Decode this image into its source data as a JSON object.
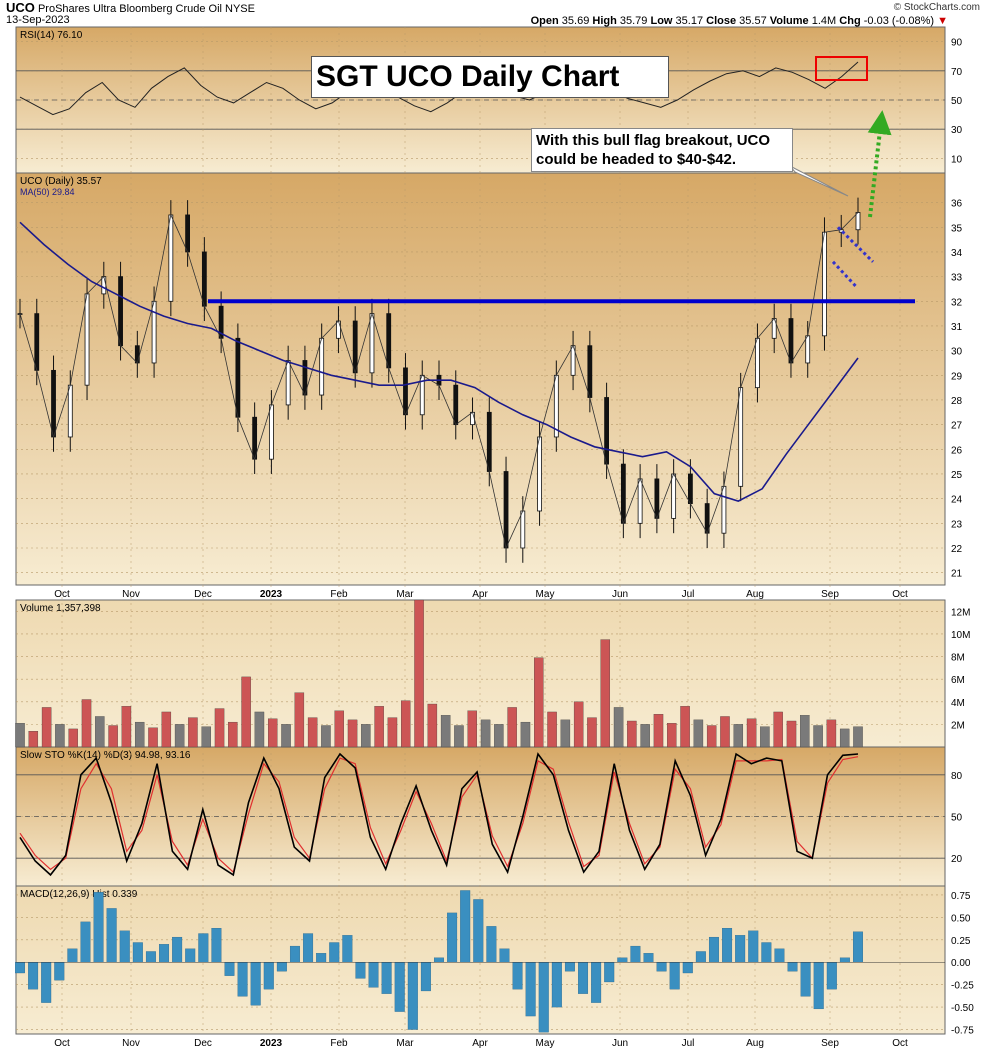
{
  "header": {
    "symbol": "UCO",
    "name": "ProShares Ultra Bloomberg Crude Oil NYSE",
    "date": "13-Sep-2023",
    "brand": "© StockCharts.com",
    "open_label": "Open",
    "open": "35.69",
    "high_label": "High",
    "high": "35.79",
    "low_label": "Low",
    "low": "35.17",
    "close_label": "Close",
    "close": "35.57",
    "volume_label": "Volume",
    "volume": "1.4M",
    "chg_label": "Chg",
    "chg": "-0.03 (-0.08%)"
  },
  "annotations": {
    "title": "SGT UCO Daily Chart",
    "note_line1": "With this bull flag breakout, UCO",
    "note_line2": "could be headed to $40-$42."
  },
  "colors": {
    "panel_bg_top": "#d9ae6a",
    "panel_bg_bottom": "#f6ead0",
    "price_line": "#0000cc",
    "ma_line": "#1a1a8c",
    "up_volume": "#7a7a7a",
    "down_volume": "#cc5555",
    "stoch_k": "#000000",
    "stoch_d": "#e03030",
    "macd_hist": "#3a8fc0",
    "arrow": "#33aa22",
    "highlight": "#ee0000"
  },
  "x_labels": [
    "Oct",
    "Nov",
    "Dec",
    "2023",
    "Feb",
    "Mar",
    "Apr",
    "May",
    "Jun",
    "Jul",
    "Aug",
    "Sep",
    "Oct"
  ],
  "chart_data": [
    {
      "type": "line",
      "title": "RSI(14) 76.10",
      "ylim": [
        0,
        100
      ],
      "y_ticks": [
        10,
        30,
        50,
        70,
        90
      ],
      "reference_lines": [
        30,
        50,
        70
      ],
      "series": [
        {
          "name": "RSI(14)",
          "last": 76.1,
          "values": [
            52,
            46,
            40,
            44,
            55,
            62,
            50,
            45,
            58,
            66,
            72,
            60,
            52,
            48,
            55,
            62,
            58,
            50,
            44,
            48,
            56,
            63,
            59,
            52,
            46,
            42,
            48,
            56,
            60,
            57,
            53,
            50,
            55,
            61,
            66,
            62,
            56,
            51,
            48,
            45,
            50,
            57,
            63,
            68,
            70,
            66,
            72,
            69,
            64,
            58,
            66,
            76
          ]
        }
      ]
    },
    {
      "type": "line",
      "title": "UCO (Daily) 35.57",
      "ylim": [
        20.5,
        37.2
      ],
      "y_ticks": [
        21,
        22,
        23,
        24,
        25,
        26,
        27,
        28,
        29,
        30,
        31,
        32,
        33,
        34,
        35,
        36
      ],
      "resistance_level": 32,
      "series": [
        {
          "name": "UCO (Daily)",
          "last": 35.57,
          "values": [
            31.5,
            29.2,
            26.5,
            28.6,
            32.3,
            33.0,
            30.2,
            29.5,
            32.0,
            35.5,
            34.0,
            31.8,
            30.5,
            27.3,
            25.6,
            27.8,
            29.6,
            28.2,
            30.5,
            31.2,
            29.1,
            31.5,
            29.3,
            27.4,
            29.0,
            28.6,
            27.0,
            27.5,
            25.1,
            22.0,
            23.5,
            26.5,
            29.0,
            30.2,
            28.1,
            25.4,
            23.0,
            24.8,
            23.2,
            25.0,
            23.8,
            22.6,
            24.5,
            28.5,
            30.5,
            31.3,
            29.5,
            30.6,
            34.8,
            34.9,
            35.6
          ]
        },
        {
          "name": "MA(50)",
          "last": 29.84,
          "values": [
            35.2,
            34.3,
            33.5,
            32.8,
            32.3,
            31.8,
            31.4,
            31.1,
            30.9,
            30.4,
            30.0,
            29.6,
            29.3,
            29.0,
            28.8,
            28.6,
            28.6,
            28.8,
            28.8,
            28.5,
            27.9,
            27.4,
            27.0,
            26.5,
            26.1,
            25.9,
            25.7,
            25.9,
            25.3,
            24.2,
            23.9,
            24.4,
            25.8,
            27.1,
            28.4,
            29.7
          ]
        }
      ]
    },
    {
      "type": "bar",
      "title": "Volume 1,357,398",
      "ylim": [
        0,
        13
      ],
      "y_ticks": [
        "2M",
        "4M",
        "6M",
        "8M",
        "10M",
        "12M"
      ],
      "series": [
        {
          "name": "Volume",
          "unit": "M",
          "values": [
            2.1,
            1.4,
            3.5,
            2.0,
            1.6,
            4.2,
            2.7,
            1.9,
            3.6,
            2.2,
            1.7,
            3.1,
            2.0,
            2.6,
            1.8,
            3.4,
            2.2,
            6.2,
            3.1,
            2.5,
            2.0,
            4.8,
            2.6,
            1.9,
            3.2,
            2.4,
            2.0,
            3.6,
            2.6,
            4.1,
            13.0,
            3.8,
            2.8,
            1.9,
            3.2,
            2.4,
            2.0,
            3.5,
            2.2,
            7.9,
            3.1,
            2.4,
            4.0,
            2.6,
            9.5,
            3.5,
            2.3,
            2.0,
            2.9,
            2.1,
            3.6,
            2.4,
            1.9,
            2.7,
            2.0,
            2.5,
            1.8,
            3.1,
            2.3,
            2.8,
            1.9,
            2.4,
            1.6,
            1.8
          ]
        }
      ]
    },
    {
      "type": "line",
      "title": "Slow STO %K(14) %D(3) 94.98, 93.16",
      "ylim": [
        0,
        100
      ],
      "y_ticks": [
        20,
        50,
        80
      ],
      "reference_lines": [
        20,
        50,
        80
      ],
      "series": [
        {
          "name": "%K(14)",
          "last": 94.98,
          "values": [
            35,
            18,
            8,
            22,
            80,
            92,
            60,
            18,
            45,
            88,
            25,
            12,
            55,
            15,
            8,
            60,
            92,
            70,
            28,
            18,
            78,
            95,
            85,
            35,
            12,
            45,
            72,
            40,
            15,
            70,
            82,
            30,
            10,
            50,
            95,
            80,
            40,
            10,
            25,
            88,
            40,
            12,
            30,
            90,
            65,
            22,
            48,
            95,
            88,
            92,
            90,
            25,
            20,
            80,
            94,
            95
          ]
        },
        {
          "name": "%D(3)",
          "last": 93.16,
          "values": [
            38,
            22,
            12,
            20,
            70,
            88,
            70,
            25,
            40,
            80,
            32,
            15,
            48,
            20,
            10,
            52,
            88,
            75,
            35,
            20,
            70,
            92,
            88,
            42,
            16,
            40,
            68,
            45,
            18,
            64,
            80,
            36,
            14,
            45,
            90,
            84,
            46,
            14,
            22,
            82,
            45,
            16,
            28,
            84,
            70,
            28,
            44,
            90,
            90,
            90,
            91,
            32,
            20,
            74,
            91,
            93
          ]
        }
      ]
    },
    {
      "type": "bar",
      "title": "MACD(12,26,9) Hist 0.339",
      "ylim": [
        -0.8,
        0.85
      ],
      "y_ticks": [
        -0.75,
        -0.5,
        -0.25,
        0.0,
        0.25,
        0.5,
        0.75
      ],
      "series": [
        {
          "name": "Hist",
          "last": 0.339,
          "values": [
            -0.12,
            -0.3,
            -0.45,
            -0.2,
            0.15,
            0.45,
            0.78,
            0.6,
            0.35,
            0.22,
            0.12,
            0.2,
            0.28,
            0.15,
            0.32,
            0.38,
            -0.15,
            -0.38,
            -0.48,
            -0.3,
            -0.1,
            0.18,
            0.32,
            0.1,
            0.22,
            0.3,
            -0.18,
            -0.28,
            -0.35,
            -0.55,
            -0.75,
            -0.32,
            0.05,
            0.55,
            0.8,
            0.7,
            0.4,
            0.15,
            -0.3,
            -0.6,
            -0.78,
            -0.5,
            -0.1,
            -0.35,
            -0.45,
            -0.22,
            0.05,
            0.18,
            0.1,
            -0.1,
            -0.3,
            -0.12,
            0.12,
            0.28,
            0.38,
            0.3,
            0.35,
            0.22,
            0.15,
            -0.1,
            -0.38,
            -0.52,
            -0.3,
            0.05,
            0.34
          ]
        }
      ]
    }
  ]
}
